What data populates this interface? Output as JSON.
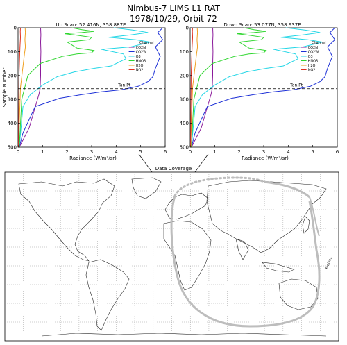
{
  "header": {
    "title": "Nimbus-7 LIMS L1 RAT",
    "subtitle": "1978/10/29, Orbit  72"
  },
  "chart_data": [
    {
      "type": "line",
      "title": "Up Scan: 52.416N, 358.887E",
      "xlabel": "Radiance (W/m²/sr)",
      "ylabel": "Sample Number",
      "xlim": [
        0,
        6
      ],
      "ylim": [
        500,
        0
      ],
      "xticks": [
        0,
        1,
        2,
        3,
        4,
        5,
        6
      ],
      "yticks": [
        0,
        100,
        200,
        300,
        400,
        500
      ],
      "legend_title": "Channel",
      "legend_placement": "top-right",
      "reference_line": {
        "label": "Tan.Pt",
        "y": 255
      },
      "series": [
        {
          "name": "CO2N",
          "color": "#8b1a9b",
          "x": [
            0.05,
            0.45,
            0.85,
            0.9,
            0.92,
            0.92,
            0.93,
            0.92,
            0.93,
            0.92
          ],
          "y": [
            500,
            420,
            280,
            255,
            200,
            150,
            100,
            60,
            30,
            0
          ]
        },
        {
          "name": "CO2W",
          "color": "#1c2fd6",
          "x": [
            0.05,
            0.2,
            0.7,
            1.7,
            2.6,
            3.4,
            4.2,
            4.9,
            5.3,
            5.5,
            5.6,
            5.8,
            5.6,
            5.9,
            5.7,
            5.9
          ],
          "y": [
            500,
            440,
            330,
            295,
            280,
            268,
            260,
            245,
            225,
            205,
            170,
            120,
            80,
            50,
            20,
            0
          ]
        },
        {
          "name": "O3",
          "color": "#22d6e6",
          "x": [
            0.05,
            0.2,
            0.5,
            1.0,
            1.6,
            2.3,
            3.1,
            3.8,
            4.4,
            4.3,
            3.4,
            4.6,
            5.4,
            4.8,
            3.7,
            4.6,
            5.3,
            4.7,
            3.9
          ],
          "y": [
            500,
            330,
            280,
            240,
            205,
            185,
            170,
            160,
            130,
            110,
            90,
            80,
            60,
            50,
            40,
            30,
            20,
            10,
            0
          ]
        },
        {
          "name": "HNO3",
          "color": "#2ed62e",
          "x": [
            0.05,
            0.15,
            0.4,
            0.9,
            1.8,
            2.4,
            3.0,
            3.1,
            2.4,
            2.0,
            2.9,
            3.0,
            2.3,
            1.9,
            2.6,
            3.1,
            2.6,
            2.2
          ],
          "y": [
            500,
            300,
            200,
            150,
            120,
            110,
            105,
            95,
            85,
            60,
            50,
            40,
            30,
            25,
            20,
            15,
            8,
            0
          ]
        },
        {
          "name": "H2O",
          "color": "#f0a020",
          "x": [
            0.02,
            0.1,
            0.25,
            0.3,
            0.28,
            0.3,
            0.29
          ],
          "y": [
            500,
            250,
            120,
            80,
            50,
            20,
            0
          ]
        },
        {
          "name": "NO2",
          "color": "#e03020",
          "x": [
            0.02,
            0.04,
            0.08,
            0.1,
            0.09,
            0.1
          ],
          "y": [
            500,
            200,
            80,
            40,
            15,
            0
          ]
        }
      ]
    },
    {
      "type": "line",
      "title": "Down Scan: 53.077N, 358.937E",
      "xlabel": "Radiance (W/m²/sr)",
      "ylabel": "",
      "xlim": [
        0,
        6
      ],
      "ylim": [
        500,
        0
      ],
      "xticks": [
        0,
        1,
        2,
        3,
        4,
        5,
        6
      ],
      "yticks": [
        0,
        100,
        200,
        300,
        400,
        500
      ],
      "legend_title": "Channel",
      "legend_placement": "top-right",
      "reference_line": {
        "label": "Tan.Pt",
        "y": 255
      },
      "series": [
        {
          "name": "CO2N",
          "color": "#8b1a9b",
          "x": [
            0.05,
            0.45,
            0.85,
            0.9,
            0.92,
            0.92,
            0.93,
            0.92,
            0.93,
            0.92
          ],
          "y": [
            500,
            420,
            280,
            255,
            200,
            150,
            100,
            60,
            30,
            0
          ]
        },
        {
          "name": "CO2W",
          "color": "#1c2fd6",
          "x": [
            0.05,
            0.2,
            0.7,
            1.7,
            2.6,
            3.4,
            4.2,
            4.9,
            5.3,
            5.5,
            5.6,
            5.8,
            5.6,
            5.9,
            5.7,
            5.9
          ],
          "y": [
            500,
            440,
            330,
            295,
            280,
            268,
            260,
            245,
            225,
            205,
            170,
            120,
            80,
            50,
            20,
            0
          ]
        },
        {
          "name": "O3",
          "color": "#22d6e6",
          "x": [
            0.05,
            0.2,
            0.5,
            1.0,
            1.6,
            2.3,
            3.1,
            3.8,
            4.4,
            4.3,
            3.4,
            4.6,
            5.4,
            4.8,
            3.7,
            4.6,
            5.3,
            4.7,
            3.9
          ],
          "y": [
            500,
            330,
            280,
            240,
            205,
            185,
            170,
            160,
            130,
            110,
            90,
            80,
            60,
            50,
            40,
            30,
            20,
            10,
            0
          ]
        },
        {
          "name": "HNO3",
          "color": "#2ed62e",
          "x": [
            0.05,
            0.15,
            0.4,
            0.9,
            1.8,
            2.4,
            3.0,
            3.1,
            2.4,
            2.0,
            2.9,
            3.0,
            2.3,
            1.9,
            2.6,
            3.1,
            2.6,
            2.2
          ],
          "y": [
            500,
            300,
            200,
            150,
            120,
            110,
            105,
            95,
            85,
            60,
            50,
            40,
            30,
            25,
            20,
            15,
            8,
            0
          ]
        },
        {
          "name": "H2O",
          "color": "#f0a020",
          "x": [
            0.02,
            0.1,
            0.25,
            0.3,
            0.28,
            0.3,
            0.29
          ],
          "y": [
            500,
            250,
            120,
            80,
            50,
            20,
            0
          ]
        },
        {
          "name": "NO2",
          "color": "#e03020",
          "x": [
            0.02,
            0.04,
            0.08,
            0.1,
            0.09,
            0.1
          ],
          "y": [
            500,
            200,
            80,
            40,
            15,
            0
          ]
        }
      ]
    }
  ],
  "map": {
    "title": "Data Coverage",
    "grid": true,
    "orbit_label": "Profiles",
    "track_color": "#bdbdbd",
    "scan_point": {
      "lat": 53.0,
      "lon": 358.9
    }
  }
}
